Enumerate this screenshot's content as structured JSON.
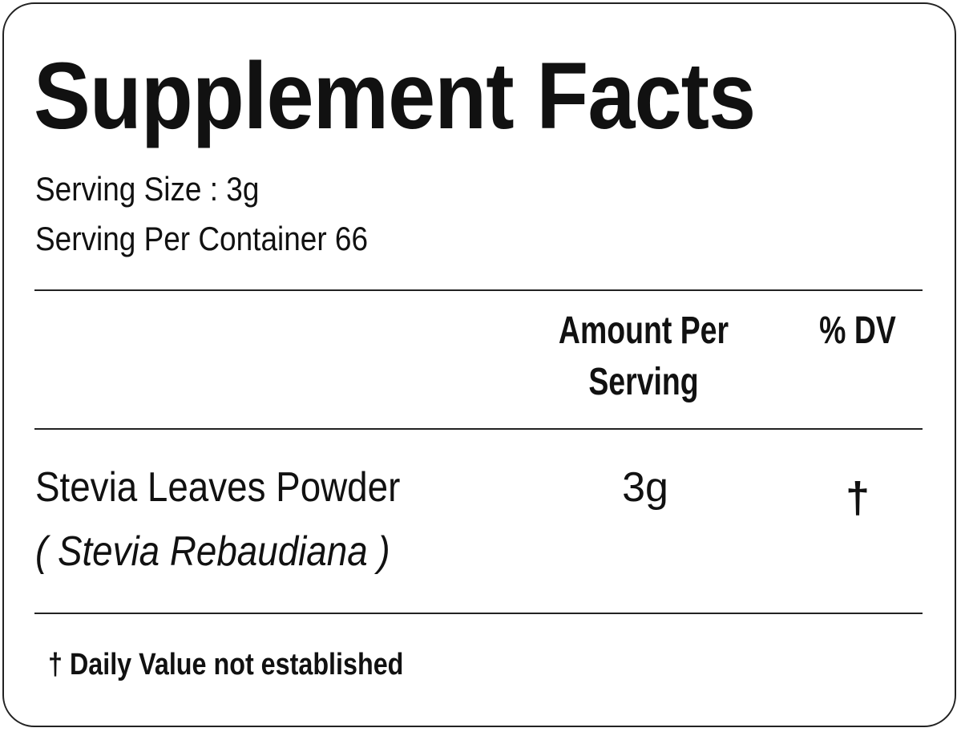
{
  "title": "Supplement Facts",
  "serving_size": "Serving Size : 3g",
  "servings_per_container": "Serving Per Container 66",
  "table": {
    "headers": {
      "amount_line1": "Amount Per",
      "amount_line2": "Serving",
      "dv": "% DV"
    },
    "rows": [
      {
        "name": "Stevia Leaves Powder",
        "latin": "( Stevia Rebaudiana )",
        "amount": "3g",
        "dv": "†"
      }
    ]
  },
  "footnote": "† Daily Value not established"
}
